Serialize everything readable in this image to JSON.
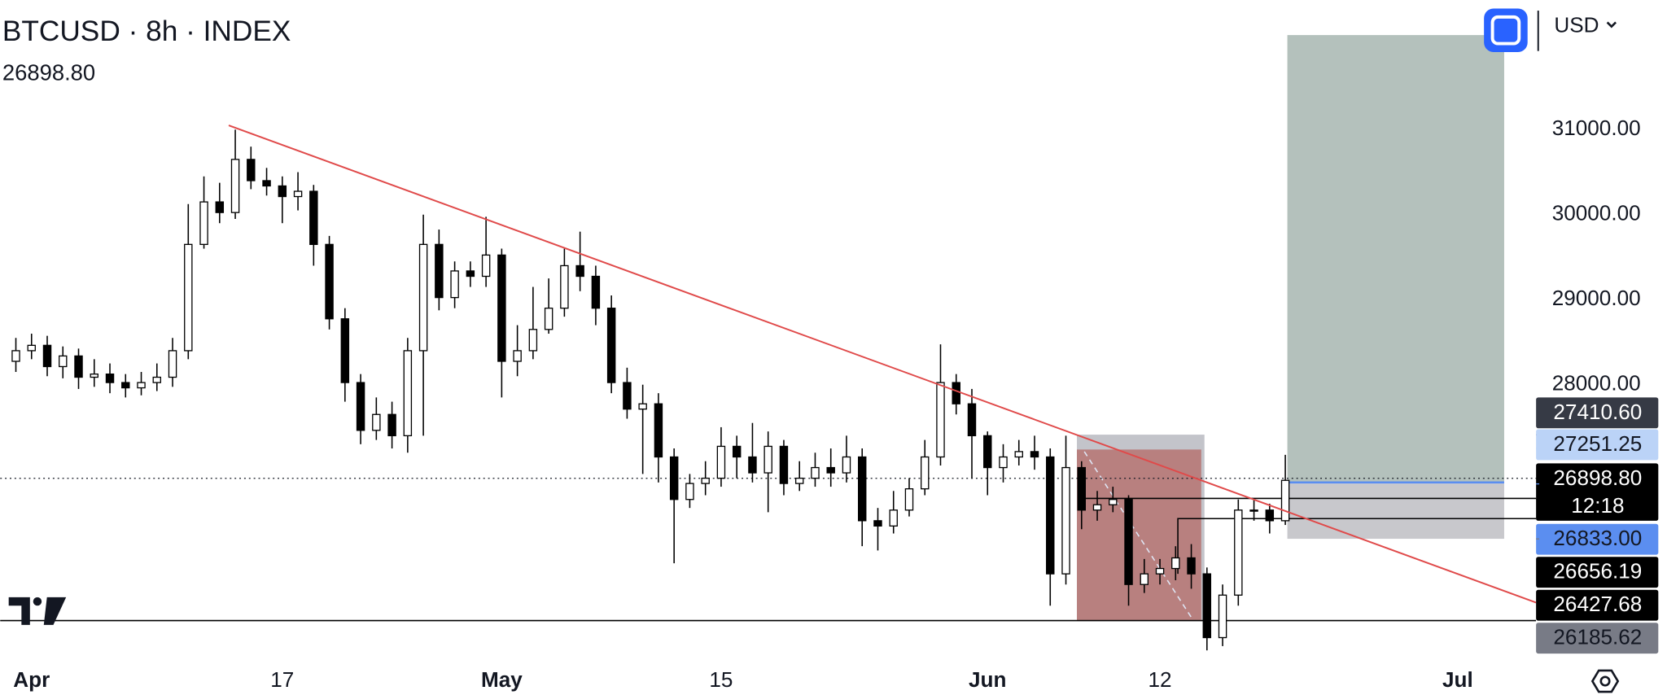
{
  "chart_data": {
    "type": "candlestick",
    "title": "BTCUSD · 8h · INDEX",
    "subtitle": "26898.80",
    "currency": "USD",
    "countdown": "12:18",
    "up_color": "#ffffff",
    "down_color": "#000000",
    "xlim": [
      "03-30",
      "07-06"
    ],
    "ylim": [
      24750,
      32525
    ],
    "xticks": [
      {
        "value": "04-01",
        "label": "Apr"
      },
      {
        "value": "04-17",
        "label": "17"
      },
      {
        "value": "05-01",
        "label": "May"
      },
      {
        "value": "05-15",
        "label": "15"
      },
      {
        "value": "06-01",
        "label": "Jun"
      },
      {
        "value": "06-12",
        "label": "12"
      },
      {
        "value": "07-01",
        "label": "Jul"
      }
    ],
    "yticks": [
      {
        "value": 28000,
        "label": "28000.00"
      },
      {
        "value": 29000,
        "label": "29000.00"
      },
      {
        "value": 30000,
        "label": "30000.00"
      },
      {
        "value": 31000,
        "label": "31000.00"
      }
    ],
    "price_labels": [
      {
        "value": 27410.6,
        "label": "27410.60",
        "color": "#363a45"
      },
      {
        "value": 27251.25,
        "label": "27251.25",
        "color": "#bbd3f7"
      },
      {
        "value": 26898.8,
        "label": "26898.80",
        "color": "#000000"
      },
      {
        "value": 26833,
        "label": "26833.00",
        "color": "#5b8ef0"
      },
      {
        "value": 26656.19,
        "label": "26656.19",
        "color": "#000000"
      },
      {
        "value": 26427.68,
        "label": "26427.68",
        "color": "#000000"
      },
      {
        "value": 26185.62,
        "label": "26185.62",
        "color": "#787b86"
      }
    ],
    "x": [
      "03-31",
      "04-01",
      "04-02",
      "04-03",
      "04-04",
      "04-05",
      "04-06",
      "04-07",
      "04-08",
      "04-09",
      "04-10",
      "04-11",
      "04-12",
      "04-13",
      "04-14",
      "04-15",
      "04-16",
      "04-17",
      "04-18",
      "04-19",
      "04-20",
      "04-21",
      "04-22",
      "04-23",
      "04-24",
      "04-25",
      "04-26",
      "04-27",
      "04-28",
      "04-29",
      "04-30",
      "05-01",
      "05-02",
      "05-03",
      "05-04",
      "05-05",
      "05-06",
      "05-07",
      "05-08",
      "05-09",
      "05-10",
      "05-11",
      "05-12",
      "05-13",
      "05-14",
      "05-15",
      "05-16",
      "05-17",
      "05-18",
      "05-19",
      "05-20",
      "05-21",
      "05-22",
      "05-23",
      "05-24",
      "05-25",
      "05-26",
      "05-27",
      "05-28",
      "05-29",
      "05-30",
      "05-31",
      "06-01",
      "06-02",
      "06-03",
      "06-04",
      "06-05",
      "06-06",
      "06-07",
      "06-08",
      "06-09",
      "06-10",
      "06-11",
      "06-12",
      "06-13",
      "06-14",
      "06-15",
      "06-16",
      "06-17",
      "06-18",
      "06-19",
      "06-20"
    ],
    "ohlc": [
      [
        28275,
        28550,
        28150,
        28400
      ],
      [
        28400,
        28600,
        28300,
        28463
      ],
      [
        28463,
        28575,
        28100,
        28213
      ],
      [
        28213,
        28450,
        28075,
        28338
      ],
      [
        28338,
        28425,
        27950,
        28088
      ],
      [
        28088,
        28300,
        27975,
        28125
      ],
      [
        28125,
        28250,
        27900,
        28025
      ],
      [
        28025,
        28125,
        27850,
        27963
      ],
      [
        27963,
        28150,
        27875,
        28025
      ],
      [
        28025,
        28250,
        27925,
        28088
      ],
      [
        28088,
        28550,
        27975,
        28400
      ],
      [
        28400,
        30125,
        28300,
        29650
      ],
      [
        29650,
        30450,
        29600,
        30150
      ],
      [
        30150,
        30375,
        29900,
        30025
      ],
      [
        30025,
        31000,
        29950,
        30650
      ],
      [
        30650,
        30800,
        30300,
        30400
      ],
      [
        30400,
        30550,
        30225,
        30338
      ],
      [
        30338,
        30450,
        29900,
        30213
      ],
      [
        30213,
        30500,
        30050,
        30275
      ],
      [
        30275,
        30350,
        29400,
        29650
      ],
      [
        29650,
        29750,
        28650,
        28775
      ],
      [
        28775,
        28900,
        27800,
        28025
      ],
      [
        28025,
        28125,
        27300,
        27463
      ],
      [
        27463,
        27850,
        27350,
        27650
      ],
      [
        27650,
        27800,
        27250,
        27400
      ],
      [
        27400,
        28550,
        27200,
        28400
      ],
      [
        28400,
        30000,
        27400,
        29650
      ],
      [
        29650,
        29825,
        28875,
        29025
      ],
      [
        29025,
        29450,
        28900,
        29338
      ],
      [
        29338,
        29450,
        29150,
        29275
      ],
      [
        29275,
        29975,
        29150,
        29525
      ],
      [
        29525,
        29600,
        27850,
        28275
      ],
      [
        28275,
        28700,
        28100,
        28400
      ],
      [
        28400,
        29150,
        28300,
        28650
      ],
      [
        28650,
        29250,
        28600,
        28900
      ],
      [
        28900,
        29600,
        28800,
        29400
      ],
      [
        29400,
        29800,
        29100,
        29275
      ],
      [
        29275,
        29400,
        28700,
        28900
      ],
      [
        28900,
        29050,
        27900,
        28025
      ],
      [
        28025,
        28200,
        27600,
        27713
      ],
      [
        27713,
        28000,
        26950,
        27775
      ],
      [
        27775,
        27900,
        26850,
        27150
      ],
      [
        27150,
        27250,
        25900,
        26650
      ],
      [
        26650,
        26950,
        26550,
        26838
      ],
      [
        26838,
        27100,
        26700,
        26900
      ],
      [
        26900,
        27500,
        26800,
        27275
      ],
      [
        27275,
        27400,
        26900,
        27150
      ],
      [
        27150,
        27550,
        26850,
        26963
      ],
      [
        26963,
        27450,
        26500,
        27275
      ],
      [
        27275,
        27350,
        26700,
        26838
      ],
      [
        26838,
        27100,
        26750,
        26900
      ],
      [
        26900,
        27200,
        26800,
        27025
      ],
      [
        27025,
        27250,
        26800,
        26963
      ],
      [
        26963,
        27400,
        26850,
        27150
      ],
      [
        27150,
        27250,
        26100,
        26400
      ],
      [
        26400,
        26550,
        26050,
        26338
      ],
      [
        26338,
        26750,
        26250,
        26525
      ],
      [
        26525,
        26900,
        26450,
        26775
      ],
      [
        26775,
        27350,
        26700,
        27150
      ],
      [
        27150,
        28475,
        27050,
        28025
      ],
      [
        28025,
        28125,
        27650,
        27775
      ],
      [
        27775,
        27950,
        26900,
        27400
      ],
      [
        27400,
        27450,
        26700,
        27025
      ],
      [
        27025,
        27300,
        26850,
        27150
      ],
      [
        27150,
        27350,
        27050,
        27213
      ],
      [
        27213,
        27400,
        27000,
        27150
      ],
      [
        27150,
        27250,
        25400,
        25775
      ],
      [
        25775,
        27400,
        25650,
        27025
      ],
      [
        27025,
        27100,
        26300,
        26525
      ],
      [
        26525,
        26750,
        26400,
        26588
      ],
      [
        26588,
        26800,
        26500,
        26650
      ],
      [
        26650,
        26700,
        25400,
        25650
      ],
      [
        25650,
        25950,
        25550,
        25775
      ],
      [
        25775,
        25950,
        25650,
        25838
      ],
      [
        25838,
        26100,
        25700,
        25963
      ],
      [
        25963,
        26125,
        25600,
        25775
      ],
      [
        25775,
        25850,
        24875,
        25025
      ],
      [
        25025,
        25650,
        24925,
        25525
      ],
      [
        25525,
        26650,
        25400,
        26525
      ],
      [
        26525,
        26650,
        26400,
        26525
      ],
      [
        26525,
        26600,
        26250,
        26400
      ],
      [
        26400,
        27175,
        26350,
        26875
      ]
    ]
  }
}
